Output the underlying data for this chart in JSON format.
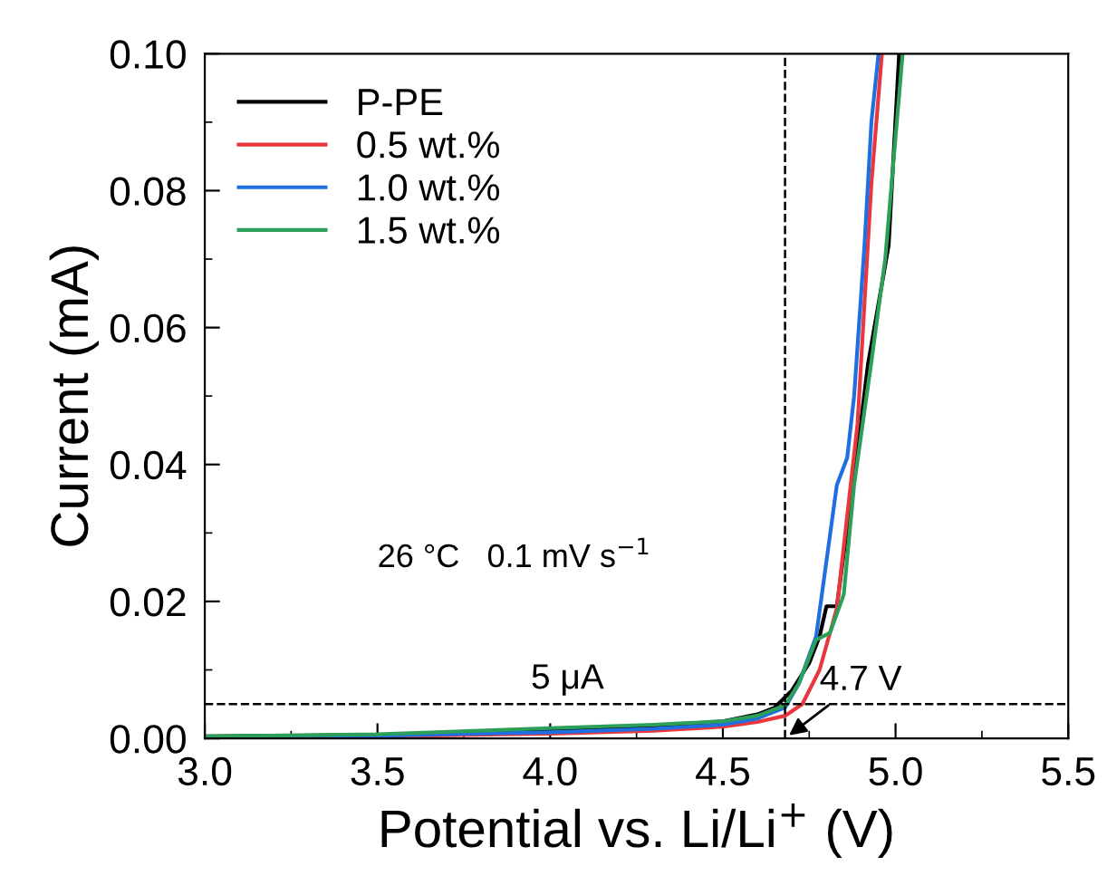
{
  "chart_data": {
    "type": "line",
    "xlabel": "Potential vs. Li/Li$^{+}$ (V)",
    "ylabel": "Current (mA)",
    "xlim": [
      3.0,
      5.5
    ],
    "ylim": [
      0.0,
      0.1
    ],
    "xticks": [
      {
        "value": 3.0,
        "label": "3.0"
      },
      {
        "value": 3.5,
        "label": "3.5"
      },
      {
        "value": 4.0,
        "label": "4.0"
      },
      {
        "value": 4.5,
        "label": "4.5"
      },
      {
        "value": 5.0,
        "label": "5.0"
      },
      {
        "value": 5.5,
        "label": "5.5"
      }
    ],
    "yticks": [
      {
        "value": 0.0,
        "label": "0.00"
      },
      {
        "value": 0.02,
        "label": "0.02"
      },
      {
        "value": 0.04,
        "label": "0.04"
      },
      {
        "value": 0.06,
        "label": "0.06"
      },
      {
        "value": 0.08,
        "label": "0.08"
      },
      {
        "value": 0.1,
        "label": "0.10"
      }
    ],
    "series": [
      {
        "name": "P-PE",
        "color": "#000000",
        "x": [
          3.0,
          3.5,
          4.0,
          4.3,
          4.5,
          4.6,
          4.65,
          4.7,
          4.75,
          4.78,
          4.8,
          4.83,
          4.85,
          4.88,
          4.92,
          4.98,
          5.01
        ],
        "values": [
          0.0003,
          0.0005,
          0.0011,
          0.0017,
          0.0025,
          0.0035,
          0.0045,
          0.007,
          0.011,
          0.0149,
          0.0193,
          0.0193,
          0.027,
          0.038,
          0.0546,
          0.072,
          0.0997
        ]
      },
      {
        "name": "0.5 wt.%",
        "color": "#e8383d",
        "x": [
          3.0,
          3.5,
          4.0,
          4.3,
          4.5,
          4.6,
          4.68,
          4.73,
          4.78,
          4.83,
          4.89,
          4.93,
          4.96
        ],
        "values": [
          0.0002,
          0.0003,
          0.0007,
          0.0011,
          0.0017,
          0.0024,
          0.0033,
          0.005,
          0.01,
          0.019,
          0.046,
          0.081,
          0.0997
        ]
      },
      {
        "name": "1.0 wt.%",
        "color": "#1f6fe0",
        "x": [
          3.0,
          3.5,
          4.0,
          4.3,
          4.5,
          4.6,
          4.68,
          4.72,
          4.77,
          4.83,
          4.86,
          4.88,
          4.91,
          4.93,
          4.95
        ],
        "values": [
          0.0002,
          0.0004,
          0.0009,
          0.0014,
          0.002,
          0.0029,
          0.0045,
          0.008,
          0.0149,
          0.037,
          0.041,
          0.05,
          0.072,
          0.09,
          0.0997
        ]
      },
      {
        "name": "1.5 wt.%",
        "color": "#2ca05a",
        "x": [
          3.0,
          3.5,
          4.0,
          4.3,
          4.5,
          4.6,
          4.68,
          4.72,
          4.77,
          4.81,
          4.85,
          4.88,
          4.93,
          4.97,
          5.02
        ],
        "values": [
          0.0003,
          0.0006,
          0.0015,
          0.002,
          0.0025,
          0.0033,
          0.0048,
          0.008,
          0.0144,
          0.0154,
          0.021,
          0.037,
          0.055,
          0.07,
          0.0997
        ]
      }
    ],
    "ref_lines": [
      {
        "axis": "y",
        "value": 0.005,
        "label": "5 μA",
        "line_style": "dashed",
        "color": "#000000"
      },
      {
        "axis": "x",
        "value": 4.68,
        "label": "4.7 V",
        "line_style": "dashed",
        "color": "#000000"
      }
    ],
    "annotations": [
      "26 °C   0.1 mV s$^{−1}$"
    ],
    "legend": "top left",
    "grid": false
  }
}
